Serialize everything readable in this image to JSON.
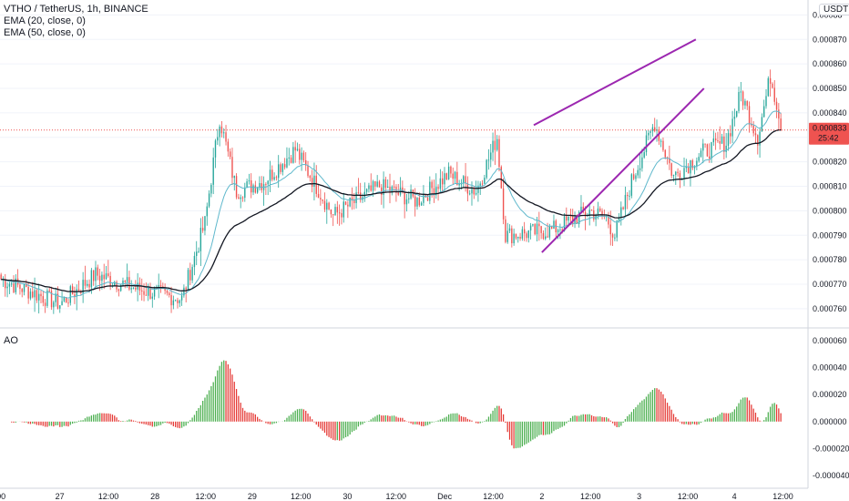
{
  "header": {
    "symbol_line": "VTHO / TetherUS, 1h, BINANCE",
    "ema20_label": "EMA (20, close, 0)",
    "ema50_label": "EMA (50, close, 0)",
    "ao_label": "AO",
    "currency_button": "USDT",
    "last_price_label": "0.000833",
    "countdown_label": "25:42"
  },
  "colors": {
    "up": "#26a69a",
    "down": "#ef5350",
    "ema20": "#5fb8cc",
    "ema50": "#131722",
    "channel": "#9c27b0",
    "ao_up": "#4caf50",
    "ao_down": "#e53935"
  },
  "chart_data": {
    "type": "candlestick",
    "price_axis": {
      "ticks": [
        "0.000760",
        "0.000770",
        "0.000780",
        "0.000790",
        "0.000800",
        "0.000810",
        "0.000820",
        "0.000830",
        "0.000840",
        "0.000850",
        "0.000860",
        "0.000870",
        "0.00088"
      ],
      "range": [
        0.000754,
        0.000885
      ]
    },
    "ao_axis": {
      "ticks": [
        "0.000060",
        "0.000040",
        "0.000020",
        "0.000000",
        "-0.000020",
        "-0.000040"
      ],
      "range": [
        -4.4e-05,
        6.4e-05
      ]
    },
    "time_axis": {
      "labels": [
        "00",
        "27",
        "12:00",
        "28",
        "12:00",
        "29",
        "12:00",
        "30",
        "12:00",
        "Dec",
        "12:00",
        "2",
        "12:00",
        "3",
        "12:00",
        "4",
        "12:00"
      ],
      "positions": [
        0,
        29,
        53,
        76,
        101,
        124,
        148,
        171,
        195,
        219,
        243,
        267,
        291,
        315,
        339,
        362,
        386
      ]
    },
    "candle_count": 372,
    "last_price": 0.000833,
    "segments": [
      {
        "from": 0,
        "to": 28,
        "start": 0.000772,
        "end": 0.000762
      },
      {
        "from": 28,
        "to": 45,
        "start": 0.000762,
        "end": 0.000774
      },
      {
        "from": 45,
        "to": 65,
        "start": 0.000774,
        "end": 0.000768
      },
      {
        "from": 65,
        "to": 86,
        "start": 0.000768,
        "end": 0.000764
      },
      {
        "from": 86,
        "to": 97,
        "start": 0.000764,
        "end": 0.000795
      },
      {
        "from": 97,
        "to": 104,
        "start": 0.000795,
        "end": 0.000838
      },
      {
        "from": 104,
        "to": 112,
        "start": 0.000838,
        "end": 0.000808
      },
      {
        "from": 112,
        "to": 125,
        "start": 0.000808,
        "end": 0.000812
      },
      {
        "from": 125,
        "to": 140,
        "start": 0.000812,
        "end": 0.000825
      },
      {
        "from": 140,
        "to": 158,
        "start": 0.000825,
        "end": 0.000798
      },
      {
        "from": 158,
        "to": 180,
        "start": 0.000798,
        "end": 0.00081
      },
      {
        "from": 180,
        "to": 198,
        "start": 0.00081,
        "end": 0.000804
      },
      {
        "from": 198,
        "to": 213,
        "start": 0.000804,
        "end": 0.000815
      },
      {
        "from": 213,
        "to": 226,
        "start": 0.000815,
        "end": 0.000808
      },
      {
        "from": 226,
        "to": 236,
        "start": 0.000808,
        "end": 0.00083
      },
      {
        "from": 236,
        "to": 240,
        "start": 0.00083,
        "end": 0.00079
      },
      {
        "from": 240,
        "to": 262,
        "start": 0.00079,
        "end": 0.000792
      },
      {
        "from": 262,
        "to": 280,
        "start": 0.000792,
        "end": 0.0008
      },
      {
        "from": 280,
        "to": 288,
        "start": 0.0008,
        "end": 0.000797
      },
      {
        "from": 288,
        "to": 292,
        "start": 0.000797,
        "end": 0.00079
      },
      {
        "from": 292,
        "to": 300,
        "start": 0.00079,
        "end": 0.000812
      },
      {
        "from": 300,
        "to": 311,
        "start": 0.000812,
        "end": 0.000836
      },
      {
        "from": 311,
        "to": 320,
        "start": 0.000836,
        "end": 0.000814
      },
      {
        "from": 320,
        "to": 334,
        "start": 0.000814,
        "end": 0.000824
      },
      {
        "from": 334,
        "to": 345,
        "start": 0.000824,
        "end": 0.000828
      },
      {
        "from": 345,
        "to": 352,
        "start": 0.000828,
        "end": 0.000848
      },
      {
        "from": 352,
        "to": 360,
        "start": 0.000848,
        "end": 0.00083
      },
      {
        "from": 360,
        "to": 366,
        "start": 0.00083,
        "end": 0.000855
      },
      {
        "from": 366,
        "to": 372,
        "start": 0.000855,
        "end": 0.000833
      }
    ],
    "channel_upper": [
      {
        "x": 263,
        "y": 0.000835
      },
      {
        "x": 343,
        "y": 0.00087
      }
    ],
    "channel_lower": [
      {
        "x": 267,
        "y": 0.000783
      },
      {
        "x": 347,
        "y": 0.00085
      }
    ]
  }
}
